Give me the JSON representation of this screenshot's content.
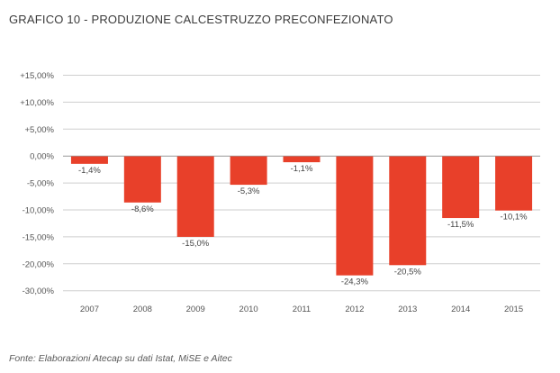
{
  "chart_data": {
    "type": "bar",
    "title": "GRAFICO 10 - PRODUZIONE CALCESTRUZZO PRECONFEZIONATO",
    "categories": [
      "2007",
      "2008",
      "2009",
      "2010",
      "2011",
      "2012",
      "2013",
      "2014",
      "2015"
    ],
    "values": [
      -1.4,
      -8.6,
      -15.0,
      -5.3,
      -1.1,
      -24.3,
      -20.5,
      -11.5,
      -10.1
    ],
    "value_labels": [
      "-1,4%",
      "-8,6%",
      "-15,0%",
      "-5,3%",
      "-1,1%",
      "-24,3%",
      "-20,5%",
      "-11,5%",
      "-10,1%"
    ],
    "y_ticks": [
      15,
      10,
      5,
      0,
      -5,
      -10,
      -15,
      -20,
      -30
    ],
    "y_tick_labels": [
      "+15,00%",
      "+10,00%",
      "+5,00%",
      "0,00%",
      "-5,00%",
      "-10,00%",
      "-15,00%",
      "-20,00%",
      "-30,00%"
    ],
    "grid": true,
    "legend": "none",
    "bar_color": "#e8402a",
    "source": "Fonte: Elaborazioni Atecap su dati Istat, MiSE e Aitec"
  }
}
